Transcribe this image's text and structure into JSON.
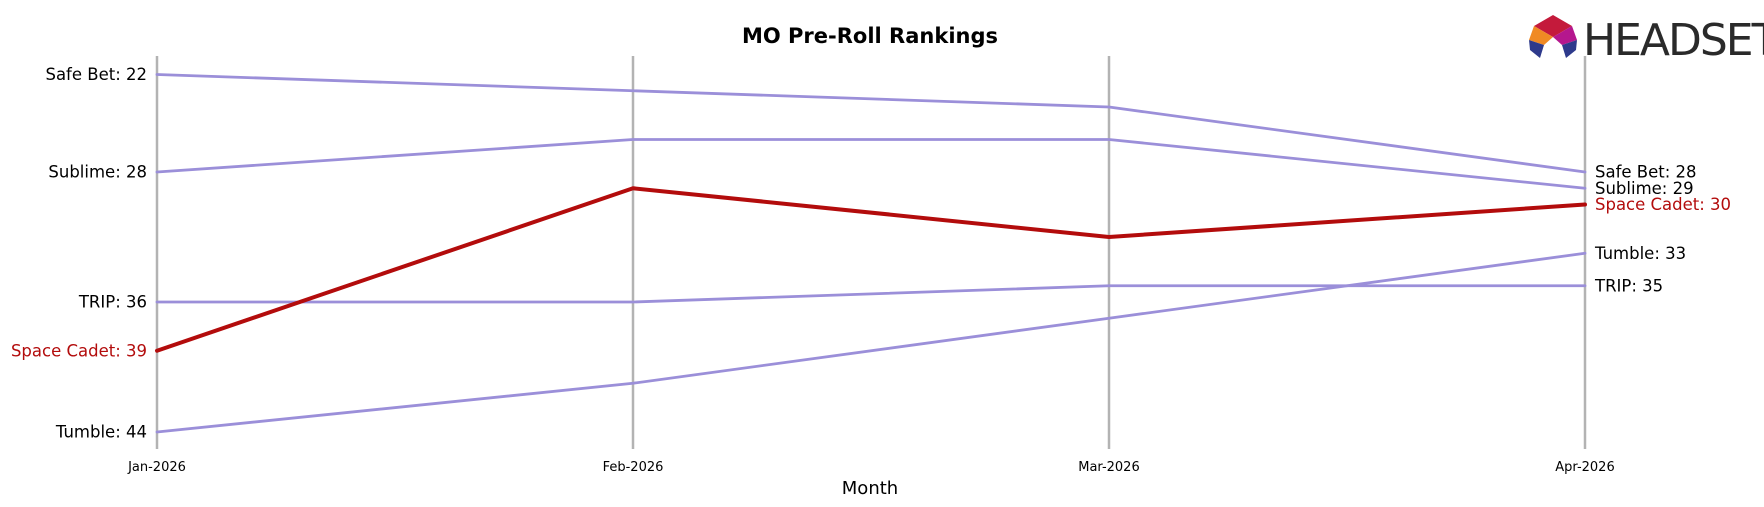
{
  "chart_data": {
    "type": "line",
    "title": "MO Pre-Roll Rankings",
    "xlabel": "Month",
    "ylabel": "",
    "categories": [
      "Jan-2026",
      "Feb-2026",
      "Mar-2026",
      "Apr-2026"
    ],
    "y_inverted": true,
    "ylim": [
      21,
      45
    ],
    "grid": "vertical",
    "highlight_series": "Space Cadet",
    "series": [
      {
        "name": "Safe Bet",
        "values": [
          22,
          23,
          24,
          28
        ],
        "color": "#9b8fd9"
      },
      {
        "name": "Sublime",
        "values": [
          28,
          26,
          26,
          29
        ],
        "color": "#9b8fd9"
      },
      {
        "name": "Space Cadet",
        "values": [
          39,
          29,
          32,
          30
        ],
        "color": "#b30c0c"
      },
      {
        "name": "TRIP",
        "values": [
          36,
          36,
          35,
          35
        ],
        "color": "#9b8fd9"
      },
      {
        "name": "Tumble",
        "values": [
          44,
          41,
          37,
          33
        ],
        "color": "#9b8fd9"
      }
    ]
  },
  "labels": {
    "start": [
      "Safe Bet: 22",
      "Sublime: 28",
      "Space Cadet: 39",
      "TRIP: 36",
      "Tumble: 44"
    ],
    "end": [
      "Safe Bet: 28",
      "Sublime: 29",
      "Space Cadet: 30",
      "TRIP: 35",
      "Tumble: 33"
    ]
  },
  "logo": {
    "text": "HEADSET",
    "icon": "headset-logo-icon"
  },
  "colors": {
    "highlight": "#b30c0c",
    "series": "#9b8fd9",
    "gridline": "#b3b3b3"
  }
}
